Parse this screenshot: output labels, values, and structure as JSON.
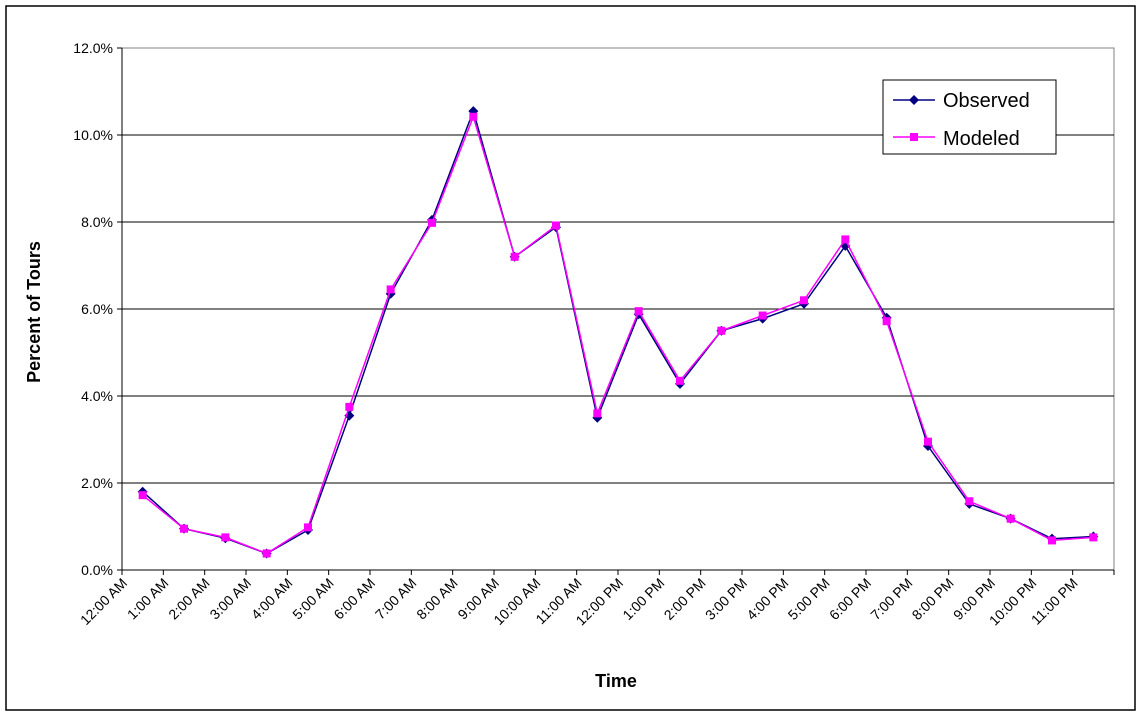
{
  "chart_data": {
    "type": "line",
    "title": "",
    "xlabel": "Time",
    "ylabel": "Percent of Tours",
    "ylim": [
      0,
      12
    ],
    "y_ticks": [
      "0.0%",
      "2.0%",
      "4.0%",
      "6.0%",
      "8.0%",
      "10.0%",
      "12.0%"
    ],
    "categories": [
      "12:00 AM",
      "1:00 AM",
      "2:00 AM",
      "3:00 AM",
      "4:00 AM",
      "5:00 AM",
      "6:00 AM",
      "7:00 AM",
      "8:00 AM",
      "9:00 AM",
      "10:00 AM",
      "11:00 AM",
      "12:00 PM",
      "1:00 PM",
      "2:00 PM",
      "3:00 PM",
      "4:00 PM",
      "5:00 PM",
      "6:00 PM",
      "7:00 PM",
      "8:00 PM",
      "9:00 PM",
      "10:00 PM",
      "11:00 PM"
    ],
    "grid": true,
    "legend_position": "top-right",
    "series": [
      {
        "name": "Observed",
        "color": "#000080",
        "marker": "diamond",
        "values": [
          1.8,
          0.95,
          0.73,
          0.38,
          0.92,
          3.55,
          6.35,
          8.05,
          10.55,
          7.2,
          7.88,
          3.5,
          5.88,
          4.28,
          5.5,
          5.78,
          6.12,
          7.45,
          5.8,
          2.85,
          1.52,
          1.18,
          0.72,
          0.77
        ]
      },
      {
        "name": "Modeled",
        "color": "#ff00ff",
        "marker": "square",
        "values": [
          1.72,
          0.95,
          0.75,
          0.38,
          0.98,
          3.75,
          6.45,
          7.98,
          10.42,
          7.2,
          7.92,
          3.6,
          5.95,
          4.35,
          5.5,
          5.85,
          6.2,
          7.6,
          5.72,
          2.95,
          1.58,
          1.18,
          0.68,
          0.75
        ]
      }
    ]
  }
}
